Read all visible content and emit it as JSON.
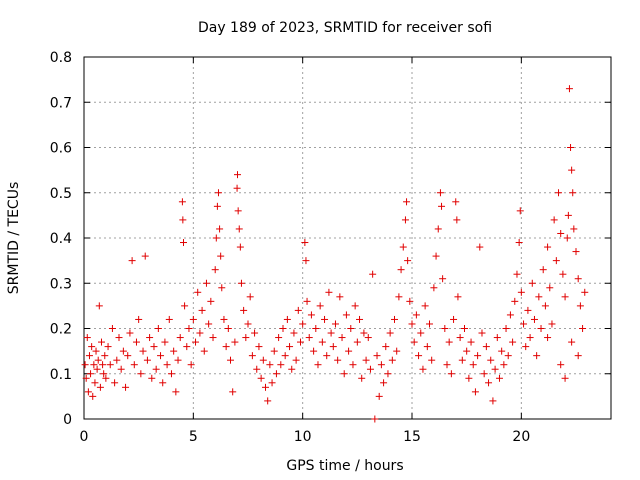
{
  "chart_data": {
    "type": "scatter",
    "title": "Day 189 of 2023, SRMTID for receiver sofi",
    "xlabel": "GPS time / hours",
    "ylabel": "SRMTID / TECUs",
    "xlim": [
      0,
      24.1
    ],
    "ylim": [
      0,
      0.8
    ],
    "xticks": [
      0,
      5,
      10,
      15,
      20
    ],
    "yticks": [
      0,
      0.1,
      0.2,
      0.3,
      0.4,
      0.5,
      0.6,
      0.7,
      0.8
    ],
    "xtick_labels": [
      "0",
      "5",
      "10",
      "15",
      "20"
    ],
    "ytick_labels": [
      "0",
      "0.1",
      "0.2",
      "0.3",
      "0.4",
      "0.5",
      "0.6",
      "0.7",
      "0.8"
    ],
    "grid": true,
    "marker": "plus",
    "color": "#e00000",
    "series": [
      {
        "name": "sofi",
        "points": [
          [
            0.05,
            0.12
          ],
          [
            0.1,
            0.09
          ],
          [
            0.15,
            0.18
          ],
          [
            0.2,
            0.06
          ],
          [
            0.25,
            0.14
          ],
          [
            0.3,
            0.1
          ],
          [
            0.35,
            0.16
          ],
          [
            0.4,
            0.05
          ],
          [
            0.45,
            0.12
          ],
          [
            0.5,
            0.08
          ],
          [
            0.55,
            0.15
          ],
          [
            0.6,
            0.11
          ],
          [
            0.65,
            0.13
          ],
          [
            0.7,
            0.25
          ],
          [
            0.75,
            0.07
          ],
          [
            0.8,
            0.17
          ],
          [
            0.85,
            0.12
          ],
          [
            0.9,
            0.1
          ],
          [
            0.95,
            0.14
          ],
          [
            1.0,
            0.09
          ],
          [
            1.1,
            0.16
          ],
          [
            1.2,
            0.12
          ],
          [
            1.3,
            0.2
          ],
          [
            1.4,
            0.08
          ],
          [
            1.5,
            0.13
          ],
          [
            1.6,
            0.18
          ],
          [
            1.7,
            0.11
          ],
          [
            1.8,
            0.15
          ],
          [
            1.9,
            0.07
          ],
          [
            2.0,
            0.14
          ],
          [
            2.1,
            0.19
          ],
          [
            2.2,
            0.35
          ],
          [
            2.3,
            0.12
          ],
          [
            2.4,
            0.17
          ],
          [
            2.5,
            0.22
          ],
          [
            2.6,
            0.1
          ],
          [
            2.7,
            0.15
          ],
          [
            2.8,
            0.36
          ],
          [
            2.9,
            0.13
          ],
          [
            3.0,
            0.18
          ],
          [
            3.1,
            0.09
          ],
          [
            3.2,
            0.16
          ],
          [
            3.3,
            0.11
          ],
          [
            3.4,
            0.2
          ],
          [
            3.5,
            0.14
          ],
          [
            3.6,
            0.08
          ],
          [
            3.7,
            0.17
          ],
          [
            3.8,
            0.12
          ],
          [
            3.9,
            0.22
          ],
          [
            4.0,
            0.1
          ],
          [
            4.1,
            0.15
          ],
          [
            4.2,
            0.06
          ],
          [
            4.3,
            0.13
          ],
          [
            4.4,
            0.18
          ],
          [
            4.5,
            0.48
          ],
          [
            4.52,
            0.44
          ],
          [
            4.55,
            0.39
          ],
          [
            4.6,
            0.25
          ],
          [
            4.7,
            0.16
          ],
          [
            4.8,
            0.2
          ],
          [
            4.9,
            0.12
          ],
          [
            5.0,
            0.22
          ],
          [
            5.1,
            0.17
          ],
          [
            5.2,
            0.28
          ],
          [
            5.3,
            0.19
          ],
          [
            5.4,
            0.24
          ],
          [
            5.5,
            0.15
          ],
          [
            5.6,
            0.3
          ],
          [
            5.7,
            0.21
          ],
          [
            5.8,
            0.26
          ],
          [
            5.9,
            0.18
          ],
          [
            6.0,
            0.33
          ],
          [
            6.05,
            0.4
          ],
          [
            6.1,
            0.47
          ],
          [
            6.15,
            0.5
          ],
          [
            6.2,
            0.42
          ],
          [
            6.25,
            0.36
          ],
          [
            6.3,
            0.29
          ],
          [
            6.4,
            0.22
          ],
          [
            6.5,
            0.16
          ],
          [
            6.6,
            0.2
          ],
          [
            6.7,
            0.13
          ],
          [
            6.8,
            0.06
          ],
          [
            6.9,
            0.17
          ],
          [
            7.0,
            0.51
          ],
          [
            7.02,
            0.54
          ],
          [
            7.05,
            0.46
          ],
          [
            7.1,
            0.42
          ],
          [
            7.15,
            0.38
          ],
          [
            7.2,
            0.3
          ],
          [
            7.3,
            0.24
          ],
          [
            7.4,
            0.18
          ],
          [
            7.5,
            0.21
          ],
          [
            7.6,
            0.27
          ],
          [
            7.7,
            0.14
          ],
          [
            7.8,
            0.19
          ],
          [
            7.9,
            0.11
          ],
          [
            8.0,
            0.16
          ],
          [
            8.1,
            0.09
          ],
          [
            8.2,
            0.13
          ],
          [
            8.3,
            0.07
          ],
          [
            8.4,
            0.04
          ],
          [
            8.5,
            0.12
          ],
          [
            8.6,
            0.08
          ],
          [
            8.7,
            0.15
          ],
          [
            8.8,
            0.1
          ],
          [
            8.9,
            0.18
          ],
          [
            9.0,
            0.12
          ],
          [
            9.1,
            0.2
          ],
          [
            9.2,
            0.14
          ],
          [
            9.3,
            0.22
          ],
          [
            9.4,
            0.16
          ],
          [
            9.5,
            0.11
          ],
          [
            9.6,
            0.19
          ],
          [
            9.7,
            0.13
          ],
          [
            9.8,
            0.24
          ],
          [
            9.9,
            0.17
          ],
          [
            10.0,
            0.21
          ],
          [
            10.1,
            0.39
          ],
          [
            10.15,
            0.35
          ],
          [
            10.2,
            0.26
          ],
          [
            10.3,
            0.18
          ],
          [
            10.4,
            0.23
          ],
          [
            10.5,
            0.15
          ],
          [
            10.6,
            0.2
          ],
          [
            10.7,
            0.12
          ],
          [
            10.8,
            0.25
          ],
          [
            10.9,
            0.17
          ],
          [
            11.0,
            0.22
          ],
          [
            11.1,
            0.14
          ],
          [
            11.2,
            0.28
          ],
          [
            11.3,
            0.19
          ],
          [
            11.4,
            0.16
          ],
          [
            11.5,
            0.21
          ],
          [
            11.6,
            0.13
          ],
          [
            11.7,
            0.27
          ],
          [
            11.8,
            0.18
          ],
          [
            11.9,
            0.1
          ],
          [
            12.0,
            0.23
          ],
          [
            12.1,
            0.15
          ],
          [
            12.2,
            0.2
          ],
          [
            12.3,
            0.12
          ],
          [
            12.4,
            0.25
          ],
          [
            12.5,
            0.17
          ],
          [
            12.6,
            0.22
          ],
          [
            12.7,
            0.09
          ],
          [
            12.8,
            0.19
          ],
          [
            12.9,
            0.13
          ],
          [
            13.0,
            0.18
          ],
          [
            13.1,
            0.11
          ],
          [
            13.2,
            0.32
          ],
          [
            13.3,
            0.0
          ],
          [
            13.4,
            0.14
          ],
          [
            13.5,
            0.05
          ],
          [
            13.6,
            0.12
          ],
          [
            13.7,
            0.08
          ],
          [
            13.8,
            0.16
          ],
          [
            13.9,
            0.1
          ],
          [
            14.0,
            0.19
          ],
          [
            14.1,
            0.13
          ],
          [
            14.2,
            0.22
          ],
          [
            14.3,
            0.15
          ],
          [
            14.4,
            0.27
          ],
          [
            14.5,
            0.33
          ],
          [
            14.6,
            0.38
          ],
          [
            14.7,
            0.44
          ],
          [
            14.75,
            0.48
          ],
          [
            14.8,
            0.35
          ],
          [
            14.9,
            0.26
          ],
          [
            15.0,
            0.21
          ],
          [
            15.1,
            0.17
          ],
          [
            15.2,
            0.23
          ],
          [
            15.3,
            0.14
          ],
          [
            15.4,
            0.19
          ],
          [
            15.5,
            0.11
          ],
          [
            15.6,
            0.25
          ],
          [
            15.7,
            0.16
          ],
          [
            15.8,
            0.21
          ],
          [
            15.9,
            0.13
          ],
          [
            16.0,
            0.29
          ],
          [
            16.1,
            0.36
          ],
          [
            16.2,
            0.42
          ],
          [
            16.3,
            0.5
          ],
          [
            16.35,
            0.47
          ],
          [
            16.4,
            0.31
          ],
          [
            16.5,
            0.2
          ],
          [
            16.6,
            0.12
          ],
          [
            16.7,
            0.17
          ],
          [
            16.8,
            0.1
          ],
          [
            16.9,
            0.22
          ],
          [
            17.0,
            0.48
          ],
          [
            17.05,
            0.44
          ],
          [
            17.1,
            0.27
          ],
          [
            17.2,
            0.18
          ],
          [
            17.3,
            0.13
          ],
          [
            17.4,
            0.2
          ],
          [
            17.5,
            0.15
          ],
          [
            17.6,
            0.09
          ],
          [
            17.7,
            0.17
          ],
          [
            17.8,
            0.12
          ],
          [
            17.9,
            0.06
          ],
          [
            18.0,
            0.14
          ],
          [
            18.1,
            0.38
          ],
          [
            18.2,
            0.19
          ],
          [
            18.3,
            0.1
          ],
          [
            18.4,
            0.16
          ],
          [
            18.5,
            0.08
          ],
          [
            18.6,
            0.13
          ],
          [
            18.7,
            0.04
          ],
          [
            18.8,
            0.11
          ],
          [
            18.9,
            0.18
          ],
          [
            19.0,
            0.09
          ],
          [
            19.1,
            0.15
          ],
          [
            19.2,
            0.12
          ],
          [
            19.3,
            0.2
          ],
          [
            19.4,
            0.14
          ],
          [
            19.5,
            0.23
          ],
          [
            19.6,
            0.17
          ],
          [
            19.7,
            0.26
          ],
          [
            19.8,
            0.32
          ],
          [
            19.9,
            0.39
          ],
          [
            19.95,
            0.46
          ],
          [
            20.0,
            0.28
          ],
          [
            20.1,
            0.21
          ],
          [
            20.2,
            0.16
          ],
          [
            20.3,
            0.24
          ],
          [
            20.4,
            0.18
          ],
          [
            20.5,
            0.3
          ],
          [
            20.6,
            0.22
          ],
          [
            20.7,
            0.14
          ],
          [
            20.8,
            0.27
          ],
          [
            20.9,
            0.2
          ],
          [
            21.0,
            0.33
          ],
          [
            21.1,
            0.25
          ],
          [
            21.2,
            0.38
          ],
          [
            21.3,
            0.29
          ],
          [
            21.4,
            0.21
          ],
          [
            21.5,
            0.44
          ],
          [
            21.6,
            0.35
          ],
          [
            21.7,
            0.5
          ],
          [
            21.8,
            0.41
          ],
          [
            21.9,
            0.32
          ],
          [
            22.0,
            0.27
          ],
          [
            22.1,
            0.4
          ],
          [
            22.15,
            0.45
          ],
          [
            22.2,
            0.73
          ],
          [
            22.25,
            0.6
          ],
          [
            22.3,
            0.55
          ],
          [
            22.35,
            0.5
          ],
          [
            22.4,
            0.42
          ],
          [
            22.5,
            0.37
          ],
          [
            22.6,
            0.31
          ],
          [
            22.7,
            0.25
          ],
          [
            22.8,
            0.2
          ],
          [
            22.9,
            0.28
          ],
          [
            22.3,
            0.17
          ],
          [
            22.6,
            0.14
          ],
          [
            21.8,
            0.12
          ],
          [
            22.0,
            0.09
          ],
          [
            21.2,
            0.18
          ]
        ]
      }
    ]
  }
}
